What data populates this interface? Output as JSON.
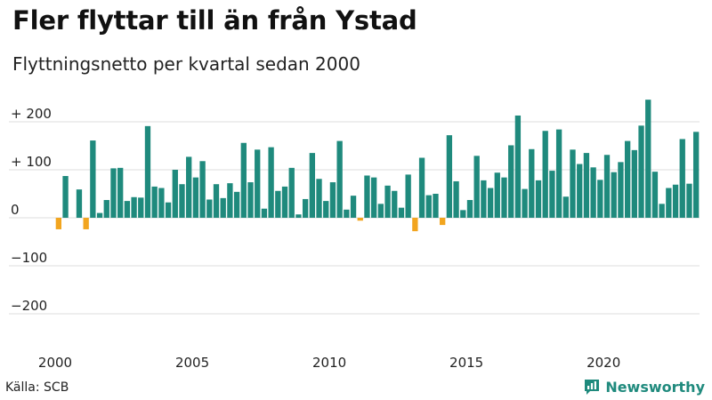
{
  "chart_data": {
    "type": "bar",
    "title": "Fler flyttar till än från Ystad",
    "subtitle": "Flyttningsnetto per kvartal sedan 2000",
    "x_start": 2000.0,
    "x_step": 0.25,
    "x_range": [
      2000,
      2023.75
    ],
    "ylim": [
      -240,
      240
    ],
    "y_ticks": [
      {
        "value": 200,
        "label": "+ 200"
      },
      {
        "value": 100,
        "label": "+ 100"
      },
      {
        "value": 0,
        "label": "0"
      },
      {
        "value": -100,
        "label": "−100"
      },
      {
        "value": -200,
        "label": "−200"
      }
    ],
    "x_ticks": [
      {
        "value": 2000,
        "label": "2000"
      },
      {
        "value": 2005,
        "label": "2005"
      },
      {
        "value": 2010,
        "label": "2010"
      },
      {
        "value": 2015,
        "label": "2015"
      },
      {
        "value": 2020,
        "label": "2020"
      }
    ],
    "grid": true,
    "colors": {
      "positive": "#1f8a7d",
      "negative": "#f2a51f",
      "grid": "#dddddd"
    },
    "values": [
      -24,
      87,
      0,
      59,
      -24,
      161,
      10,
      37,
      103,
      104,
      35,
      43,
      42,
      191,
      65,
      62,
      32,
      100,
      70,
      127,
      84,
      118,
      38,
      70,
      41,
      72,
      54,
      156,
      74,
      142,
      19,
      147,
      56,
      65,
      104,
      7,
      39,
      135,
      81,
      35,
      74,
      160,
      17,
      46,
      -6,
      88,
      84,
      29,
      67,
      56,
      21,
      90,
      -28,
      125,
      47,
      50,
      -15,
      172,
      76,
      16,
      37,
      129,
      78,
      62,
      94,
      84,
      151,
      213,
      60,
      143,
      78,
      181,
      98,
      184,
      44,
      142,
      112,
      135,
      105,
      79,
      131,
      95,
      116,
      160,
      141,
      192,
      246,
      96,
      29,
      62,
      69,
      164,
      71,
      179
    ]
  },
  "footer": {
    "source": "Källa: SCB",
    "brand": "Newsworthy"
  },
  "icons": {
    "brand": "newsworthy-logo-icon"
  }
}
